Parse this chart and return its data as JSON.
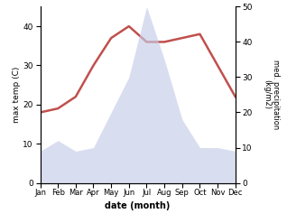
{
  "months": [
    "Jan",
    "Feb",
    "Mar",
    "Apr",
    "May",
    "Jun",
    "Jul",
    "Aug",
    "Sep",
    "Oct",
    "Nov",
    "Dec"
  ],
  "month_indices": [
    0,
    1,
    2,
    3,
    4,
    5,
    6,
    7,
    8,
    9,
    10,
    11
  ],
  "temperature": [
    18,
    19,
    22,
    30,
    37,
    40,
    36,
    36,
    37,
    38,
    30,
    22
  ],
  "precipitation": [
    9,
    12,
    9,
    10,
    20,
    30,
    50,
    35,
    18,
    10,
    10,
    9
  ],
  "temp_color": "#c0504d",
  "precip_fill_color": "#c5cce8",
  "precip_fill_alpha": 0.65,
  "temp_ylim": [
    0,
    45
  ],
  "precip_ylim": [
    0,
    50
  ],
  "temp_yticks": [
    0,
    10,
    20,
    30,
    40
  ],
  "precip_yticks": [
    0,
    10,
    20,
    30,
    40,
    50
  ],
  "xlabel": "date (month)",
  "ylabel_left": "max temp (C)",
  "ylabel_right": "med. precipitation\n(kg/m2)",
  "background_color": "#ffffff",
  "line_width": 1.8
}
